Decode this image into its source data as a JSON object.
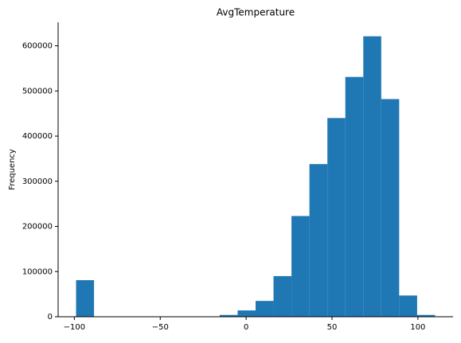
{
  "chart_data": {
    "type": "histogram",
    "title": "AvgTemperature",
    "y_label": "Frequency",
    "bins": [
      -99,
      -88.55,
      -78.1,
      -67.65,
      -57.2,
      -46.75,
      -36.3,
      -25.85,
      -15.4,
      -4.95,
      5.5,
      15.95,
      26.4,
      36.85,
      47.3,
      57.75,
      68.2,
      78.65,
      89.1,
      99.55,
      110
    ],
    "values": [
      81000,
      0,
      0,
      0,
      0,
      0,
      0,
      0,
      4000,
      14000,
      35000,
      90000,
      223000,
      338000,
      440000,
      531000,
      621000,
      482000,
      47000,
      4000
    ],
    "color": "#1f77b4",
    "xlim": [
      -109.45,
      120.45
    ],
    "xticks": [
      {
        "value": -100,
        "label": "−100"
      },
      {
        "value": -50,
        "label": "−50"
      },
      0,
      50,
      100
    ],
    "ylim": [
      0,
      652050
    ],
    "yticks": [
      0,
      100000,
      200000,
      300000,
      400000,
      500000,
      600000
    ]
  }
}
